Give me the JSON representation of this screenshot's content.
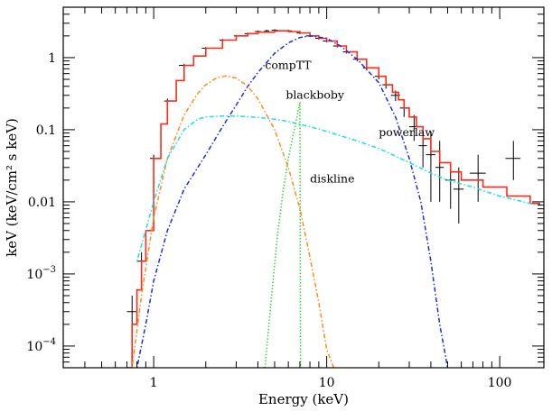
{
  "chart_data": {
    "type": "line",
    "title": "",
    "xlabel": "Energy (keV)",
    "ylabel": "keV (keV/cm² s keV)",
    "x_scale": "log",
    "y_scale": "log",
    "xlim": [
      0.3,
      180
    ],
    "ylim": [
      5e-05,
      5
    ],
    "grid": false,
    "x_ticks": [
      {
        "value": 1,
        "label": "1"
      },
      {
        "value": 10,
        "label": "10"
      },
      {
        "value": 100,
        "label": "100"
      }
    ],
    "y_ticks": [
      {
        "value": 1,
        "label": "1",
        "exp": ""
      },
      {
        "value": 0.1,
        "label": "0.1",
        "exp": ""
      },
      {
        "value": 0.01,
        "label": "0.01",
        "exp": ""
      },
      {
        "value": 0.001,
        "label": "10",
        "exp": "−3"
      },
      {
        "value": 0.0001,
        "label": "10",
        "exp": "−4"
      }
    ],
    "annotations": [
      {
        "text": "compTT",
        "x": 4.4,
        "y": 0.7
      },
      {
        "text": "blackboby",
        "x": 5.8,
        "y": 0.27
      },
      {
        "text": "powerlaw",
        "x": 20.0,
        "y": 0.082
      },
      {
        "text": "diskline",
        "x": 8.0,
        "y": 0.0185
      }
    ],
    "series": [
      {
        "name": "data",
        "style": "points",
        "color": "#000000",
        "x": [
          0.75,
          0.85,
          1.0,
          1.2,
          1.5,
          2.0,
          2.5,
          3.0,
          3.5,
          4.0,
          4.5,
          5.0,
          6.0,
          7.0,
          8.0,
          9.0,
          10.0,
          11.5,
          13.0,
          15.0,
          17.0,
          20.0,
          22.0,
          25.0,
          28.0,
          32.0,
          36.0,
          40.0,
          45.0,
          52.0,
          58.0,
          75.0,
          120.0
        ],
        "y": [
          0.0003,
          0.0015,
          0.04,
          0.25,
          0.78,
          1.35,
          1.75,
          2.0,
          2.15,
          2.3,
          2.35,
          2.4,
          2.35,
          2.2,
          2.0,
          1.85,
          1.7,
          1.45,
          1.2,
          0.95,
          0.72,
          0.55,
          0.42,
          0.3,
          0.2,
          0.11,
          0.06,
          0.045,
          0.03,
          0.02,
          0.015,
          0.025,
          0.04
        ],
        "yerr_low": [
          0.0002,
          0.0005,
          0.005,
          0.02,
          0.04,
          0.05,
          0.06,
          0.06,
          0.07,
          0.07,
          0.08,
          0.08,
          0.08,
          0.08,
          0.08,
          0.07,
          0.07,
          0.07,
          0.06,
          0.06,
          0.05,
          0.05,
          0.05,
          0.05,
          0.05,
          0.04,
          0.03,
          0.035,
          0.02,
          0.012,
          0.01,
          0.015,
          0.02
        ],
        "yerr_high": [
          0.0002,
          0.0005,
          0.005,
          0.02,
          0.04,
          0.05,
          0.06,
          0.06,
          0.07,
          0.07,
          0.08,
          0.08,
          0.08,
          0.08,
          0.08,
          0.07,
          0.07,
          0.07,
          0.06,
          0.06,
          0.05,
          0.05,
          0.05,
          0.05,
          0.06,
          0.05,
          0.05,
          0.05,
          0.04,
          0.015,
          0.015,
          0.02,
          0.03
        ],
        "xerr": [
          0.05,
          0.05,
          0.05,
          0.05,
          0.1,
          0.1,
          0.1,
          0.1,
          0.15,
          0.15,
          0.15,
          0.2,
          0.3,
          0.3,
          0.4,
          0.4,
          0.5,
          0.6,
          0.6,
          0.8,
          0.8,
          1.0,
          1.0,
          1.5,
          1.5,
          2.0,
          2.0,
          2.5,
          2.5,
          3.5,
          4.0,
          8.0,
          12.0
        ]
      },
      {
        "name": "total",
        "style": "step",
        "color": "#ff2a1a",
        "x": [
          0.7,
          0.75,
          0.8,
          0.85,
          0.9,
          1.0,
          1.1,
          1.2,
          1.35,
          1.5,
          1.7,
          2.0,
          2.5,
          3.0,
          3.5,
          4.0,
          5.0,
          6.0,
          7.0,
          8.0,
          9.0,
          10.0,
          11.5,
          13.0,
          15.0,
          17.0,
          20.0,
          22.0,
          24.0,
          26.0,
          28.0,
          30.0,
          33.0,
          36.0,
          40.0,
          45.0,
          52.0,
          60.0,
          80.0,
          110.0,
          150.0,
          170.0
        ],
        "y": [
          5e-05,
          0.0002,
          0.0006,
          0.0015,
          0.004,
          0.04,
          0.12,
          0.25,
          0.48,
          0.78,
          1.05,
          1.35,
          1.75,
          2.0,
          2.15,
          2.25,
          2.35,
          2.3,
          2.2,
          2.0,
          1.85,
          1.7,
          1.45,
          1.2,
          0.95,
          0.72,
          0.55,
          0.42,
          0.33,
          0.26,
          0.2,
          0.15,
          0.11,
          0.075,
          0.05,
          0.035,
          0.026,
          0.02,
          0.016,
          0.012,
          0.0095,
          0.009
        ]
      },
      {
        "name": "compTT",
        "style": "dotdash",
        "color": "#1a2ee0",
        "x": [
          0.8,
          0.9,
          1.0,
          1.2,
          1.5,
          2.0,
          2.5,
          3.0,
          3.5,
          4.0,
          5.0,
          6.0,
          7.0,
          8.0,
          10.0,
          12.0,
          15.0,
          20.0,
          25.0,
          30.0,
          35.0,
          40.0,
          45.0,
          50.0
        ],
        "y": [
          5e-05,
          0.0002,
          0.0008,
          0.004,
          0.015,
          0.045,
          0.11,
          0.22,
          0.4,
          0.62,
          1.15,
          1.6,
          1.9,
          2.0,
          1.85,
          1.45,
          0.95,
          0.45,
          0.15,
          0.04,
          0.01,
          0.0015,
          0.0002,
          5e-05
        ]
      },
      {
        "name": "blackboby",
        "style": "dotdash",
        "color": "#ff8c1a",
        "x": [
          0.75,
          0.85,
          1.0,
          1.2,
          1.5,
          1.8,
          2.0,
          2.3,
          2.6,
          3.0,
          3.5,
          4.0,
          5.0,
          6.0,
          7.0,
          8.0,
          9.0,
          10.0,
          11.0
        ],
        "y": [
          5e-05,
          0.0005,
          0.006,
          0.04,
          0.16,
          0.32,
          0.42,
          0.52,
          0.56,
          0.52,
          0.4,
          0.27,
          0.1,
          0.03,
          0.008,
          0.0017,
          0.0004,
          9e-05,
          5e-05
        ],
        "annotation_text": "blackboby"
      },
      {
        "name": "powerlaw",
        "style": "dotdash",
        "color": "#1ae0e0",
        "x": [
          0.8,
          1.0,
          1.2,
          1.5,
          1.8,
          2.0,
          2.5,
          3.0,
          4.0,
          5.0,
          6.0,
          8.0,
          10.0,
          15.0,
          20.0,
          30.0,
          40.0,
          50.0,
          70.0,
          100.0,
          150.0,
          170.0
        ],
        "y": [
          0.0015,
          0.01,
          0.04,
          0.1,
          0.14,
          0.15,
          0.155,
          0.155,
          0.148,
          0.14,
          0.13,
          0.11,
          0.095,
          0.07,
          0.055,
          0.035,
          0.025,
          0.02,
          0.016,
          0.012,
          0.0095,
          0.009
        ]
      },
      {
        "name": "diskline",
        "style": "dotted",
        "color": "#1ad21a",
        "x": [
          4.4,
          4.8,
          5.2,
          5.6,
          6.0,
          6.4,
          6.7,
          6.85,
          7.0,
          7.05
        ],
        "y": [
          5e-05,
          0.0005,
          0.0035,
          0.014,
          0.04,
          0.085,
          0.14,
          0.19,
          0.24,
          5e-05
        ]
      }
    ]
  }
}
